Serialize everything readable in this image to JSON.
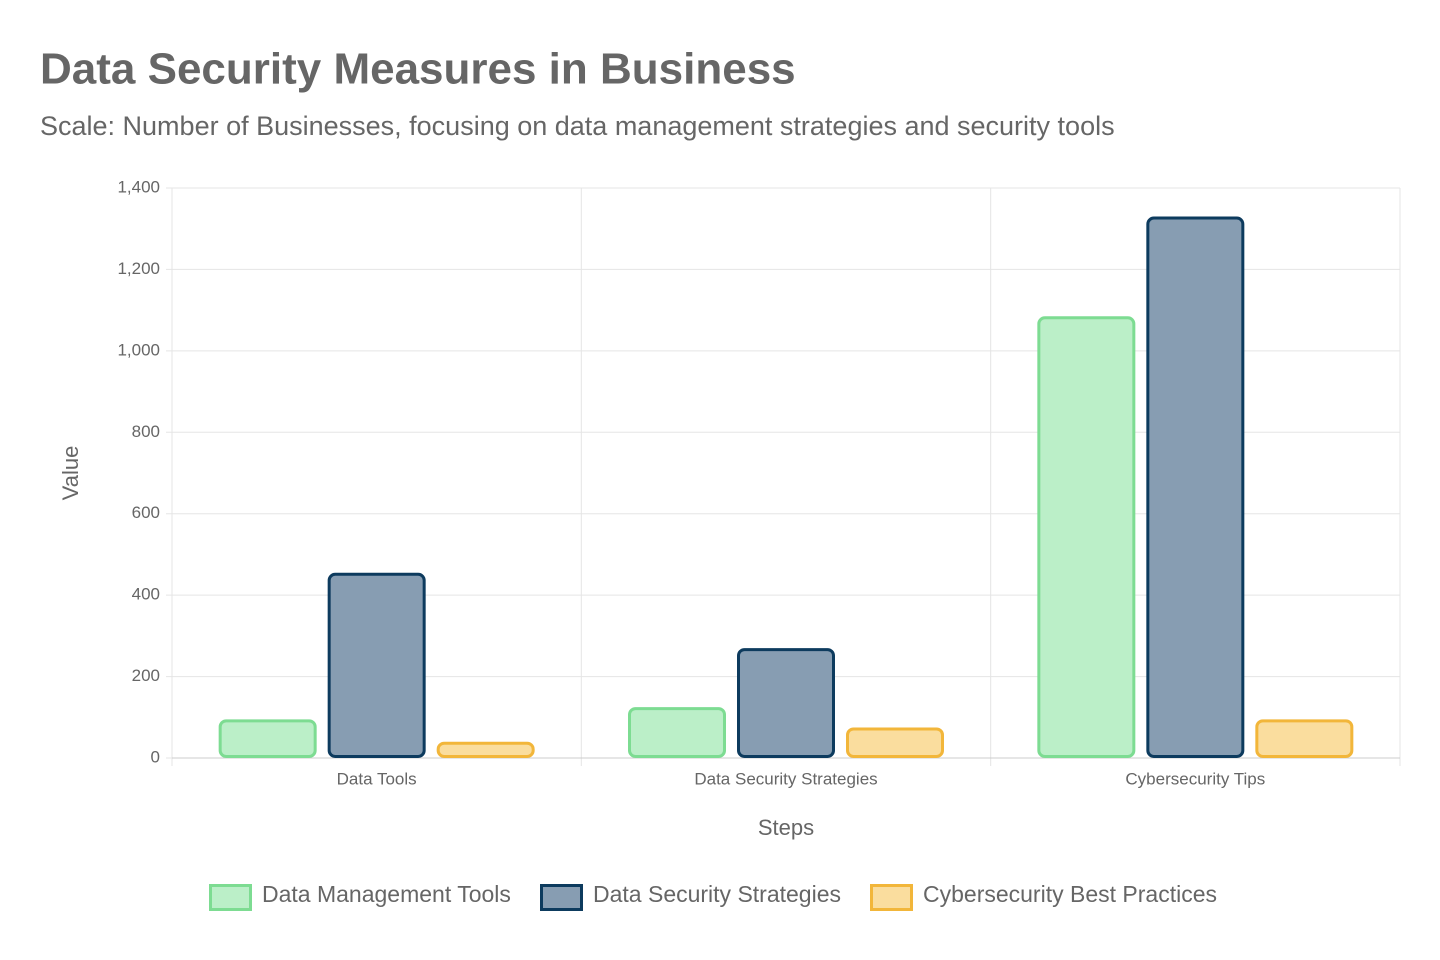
{
  "chart_data": {
    "type": "bar",
    "title": "Data Security Measures in Business",
    "subtitle": "Scale: Number of Businesses, focusing on data management strategies and security tools",
    "x_label": "Steps",
    "y_label": "Value",
    "categories": [
      "Data Tools",
      "Data Security Strategies",
      "Cybersecurity Tips"
    ],
    "series": [
      {
        "name": "Data Management Tools",
        "color": "#7ddc92",
        "fill": "#bbefc8",
        "values": [
          95,
          125,
          1085
        ]
      },
      {
        "name": "Data Security Strategies",
        "color": "#0d3b5e",
        "fill": "#879db2",
        "values": [
          455,
          270,
          1330
        ]
      },
      {
        "name": "Cybersecurity Best Practices",
        "color": "#f2b63a",
        "fill": "#fadd9e",
        "values": [
          40,
          75,
          95
        ]
      }
    ],
    "ylim": [
      0,
      1400
    ],
    "yticks": [
      0,
      200,
      400,
      600,
      800,
      {
        "value": 1000,
        "label": "1,000"
      },
      {
        "value": 1200,
        "label": "1,200"
      },
      {
        "value": 1400,
        "label": "1,400"
      }
    ],
    "grid": true,
    "legend": "bottom"
  }
}
